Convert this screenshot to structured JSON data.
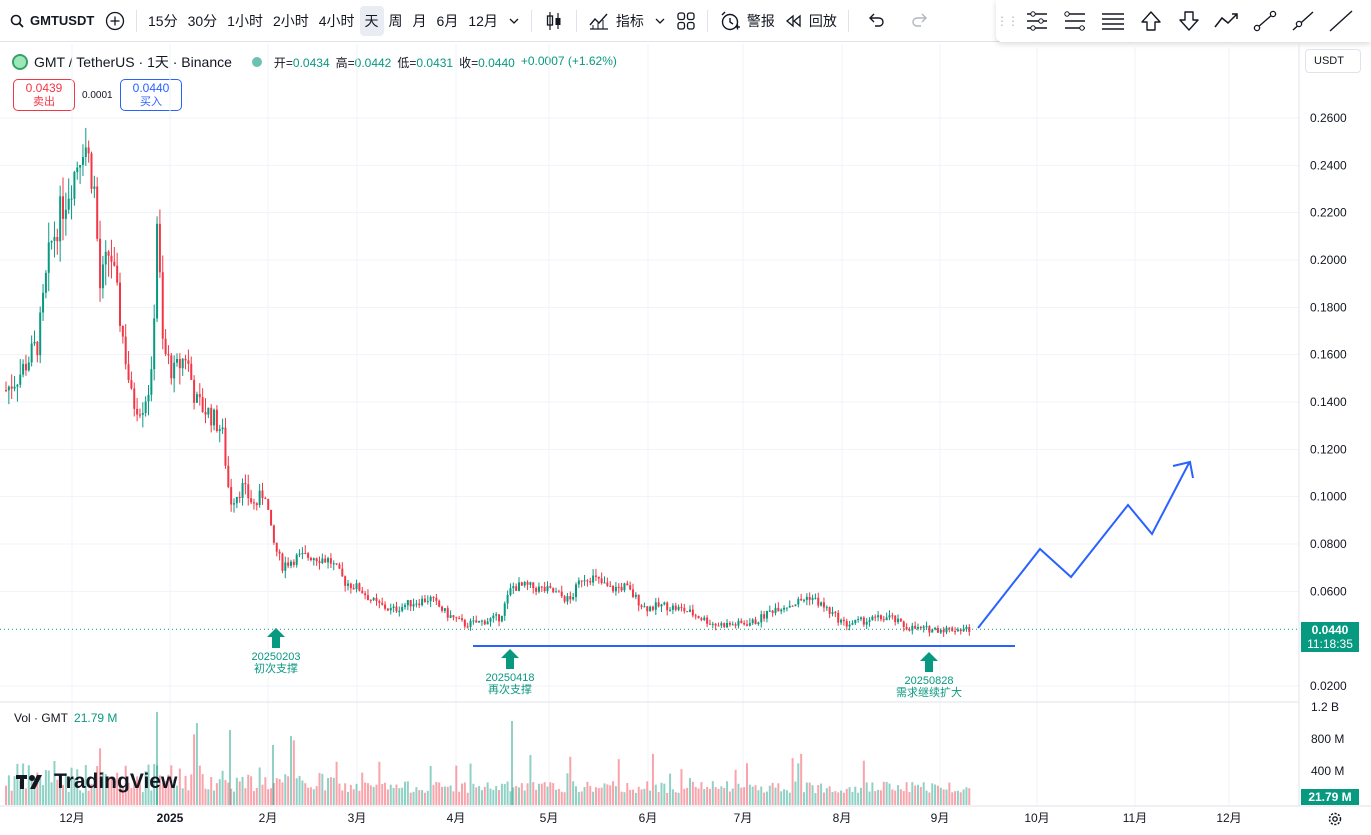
{
  "toolbar": {
    "symbol": "GMTUSDT",
    "intervals": [
      "15分",
      "30分",
      "1小时",
      "2小时",
      "4小时",
      "天",
      "周",
      "月",
      "6月",
      "12月"
    ],
    "active_interval": "天",
    "indicators": "指标",
    "alert": "警报",
    "replay": "回放"
  },
  "legend": {
    "title": "GMT / TetherUS · 1天 · Binance",
    "open_label": "开",
    "open": "0.0434",
    "high_label": "高",
    "high": "0.0442",
    "low_label": "低",
    "low": "0.0431",
    "close_label": "收",
    "close": "0.0440",
    "change": "+0.0007 (+1.62%)"
  },
  "sell": {
    "price": "0.0439",
    "label": "卖出"
  },
  "buy": {
    "price": "0.0440",
    "label": "买入"
  },
  "spread": "0.0001",
  "currency": "USDT",
  "price_axis": [
    "0.2600",
    "0.2400",
    "0.2200",
    "0.2000",
    "0.1800",
    "0.1600",
    "0.1400",
    "0.1200",
    "0.1000",
    "0.0800",
    "0.0600",
    "0.0200"
  ],
  "current_price": {
    "price": "0.0440",
    "countdown": "11:18:35"
  },
  "volume": {
    "label": "Vol · GMT",
    "value": "21.79 M",
    "axis": [
      "1.2 B",
      "800 M",
      "400 M"
    ],
    "tag": "21.79 M"
  },
  "time_axis": [
    "12月",
    "2025",
    "2月",
    "3月",
    "4月",
    "5月",
    "6月",
    "7月",
    "8月",
    "9月",
    "10月",
    "11月",
    "12月"
  ],
  "annotations": [
    {
      "date": "20250203",
      "text": "初次支撑"
    },
    {
      "date": "20250418",
      "text": "再次支撑"
    },
    {
      "date": "20250828",
      "text": "需求继续扩大"
    }
  ],
  "brand": "TradingView",
  "colors": {
    "up": "#089981",
    "down": "#f23645",
    "drawing": "#2962ff",
    "arrow": "#089981"
  },
  "icons": [
    "search-icon",
    "add-symbol-icon",
    "chevron-down-icon",
    "candles-icon",
    "indicators-icon",
    "layouts-icon",
    "alert-icon",
    "replay-icon",
    "undo-icon",
    "redo-icon",
    "settings-icon"
  ]
}
